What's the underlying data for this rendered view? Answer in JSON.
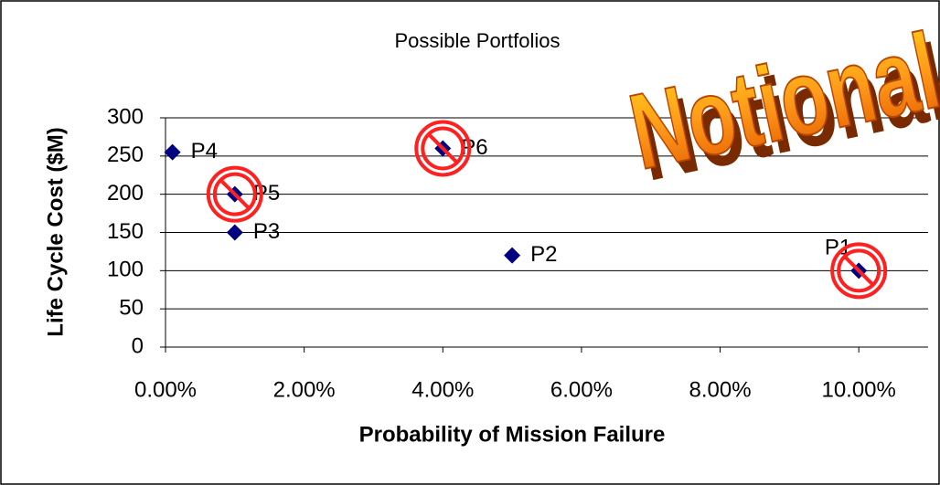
{
  "chart_data": {
    "type": "scatter",
    "title": "Possible Portfolios",
    "x_label": "Probability of Mission Failure",
    "y_label": "Life Cycle Cost ($M)",
    "watermark": "Notional",
    "point_labels": [
      "P1",
      "P2",
      "P3",
      "P4",
      "P5",
      "P6"
    ],
    "x": [
      10,
      5,
      1,
      0.1,
      1,
      4
    ],
    "values": [
      100,
      120,
      150,
      255,
      200,
      260
    ],
    "crossed_out": [
      true,
      false,
      false,
      false,
      true,
      true
    ],
    "color": "#000080",
    "xlim": [
      0,
      11
    ],
    "xticks": [
      {
        "value": 0,
        "label": "0.00%"
      },
      {
        "value": 2,
        "label": "2.00%"
      },
      {
        "value": 4,
        "label": "4.00%"
      },
      {
        "value": 6,
        "label": "6.00%"
      },
      {
        "value": 8,
        "label": "8.00%"
      },
      {
        "value": 10,
        "label": "10.00%"
      }
    ],
    "ylim": [
      0,
      300
    ],
    "yticks": [
      0,
      50,
      100,
      150,
      200,
      250,
      300
    ],
    "grid": true
  }
}
